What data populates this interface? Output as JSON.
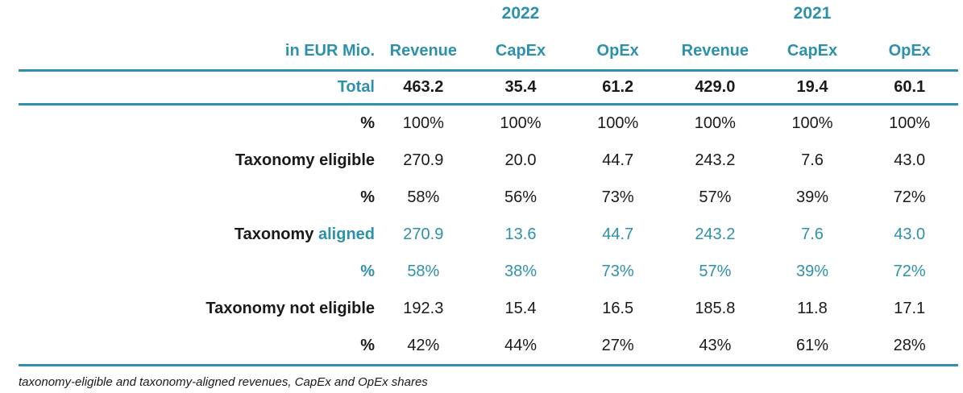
{
  "meta": {
    "accent_color": "#2D91AC",
    "text_color": "#1A1A1A"
  },
  "table": {
    "unit_label": "in EUR Mio.",
    "years": [
      "2022",
      "2021"
    ],
    "column_headers": [
      "Revenue",
      "CapEx",
      "OpEx",
      "Revenue",
      "CapEx",
      "OpEx"
    ],
    "rows": [
      {
        "label": "Total",
        "values": [
          "463.2",
          "35.4",
          "61.2",
          "429.0",
          "19.4",
          "60.1"
        ]
      },
      {
        "label": "%",
        "values": [
          "100%",
          "100%",
          "100%",
          "100%",
          "100%",
          "100%"
        ]
      },
      {
        "label": "Taxonomy eligible",
        "values": [
          "270.9",
          "20.0",
          "44.7",
          "243.2",
          "7.6",
          "43.0"
        ]
      },
      {
        "label": "%",
        "values": [
          "58%",
          "56%",
          "73%",
          "57%",
          "39%",
          "72%"
        ]
      },
      {
        "label_black": "Taxonomy",
        "label_accent": "aligned",
        "values": [
          "270.9",
          "13.6",
          "44.7",
          "243.2",
          "7.6",
          "43.0"
        ]
      },
      {
        "label": "%",
        "values": [
          "58%",
          "38%",
          "73%",
          "57%",
          "39%",
          "72%"
        ]
      },
      {
        "label": "Taxonomy not eligible",
        "values": [
          "192.3",
          "15.4",
          "16.5",
          "185.8",
          "11.8",
          "17.1"
        ]
      },
      {
        "label": "%",
        "values": [
          "42%",
          "44%",
          "27%",
          "43%",
          "61%",
          "28%"
        ]
      }
    ]
  },
  "footer": {
    "caption": "taxonomy-eligible and taxonomy-aligned revenues, CapEx and OpEx shares"
  }
}
